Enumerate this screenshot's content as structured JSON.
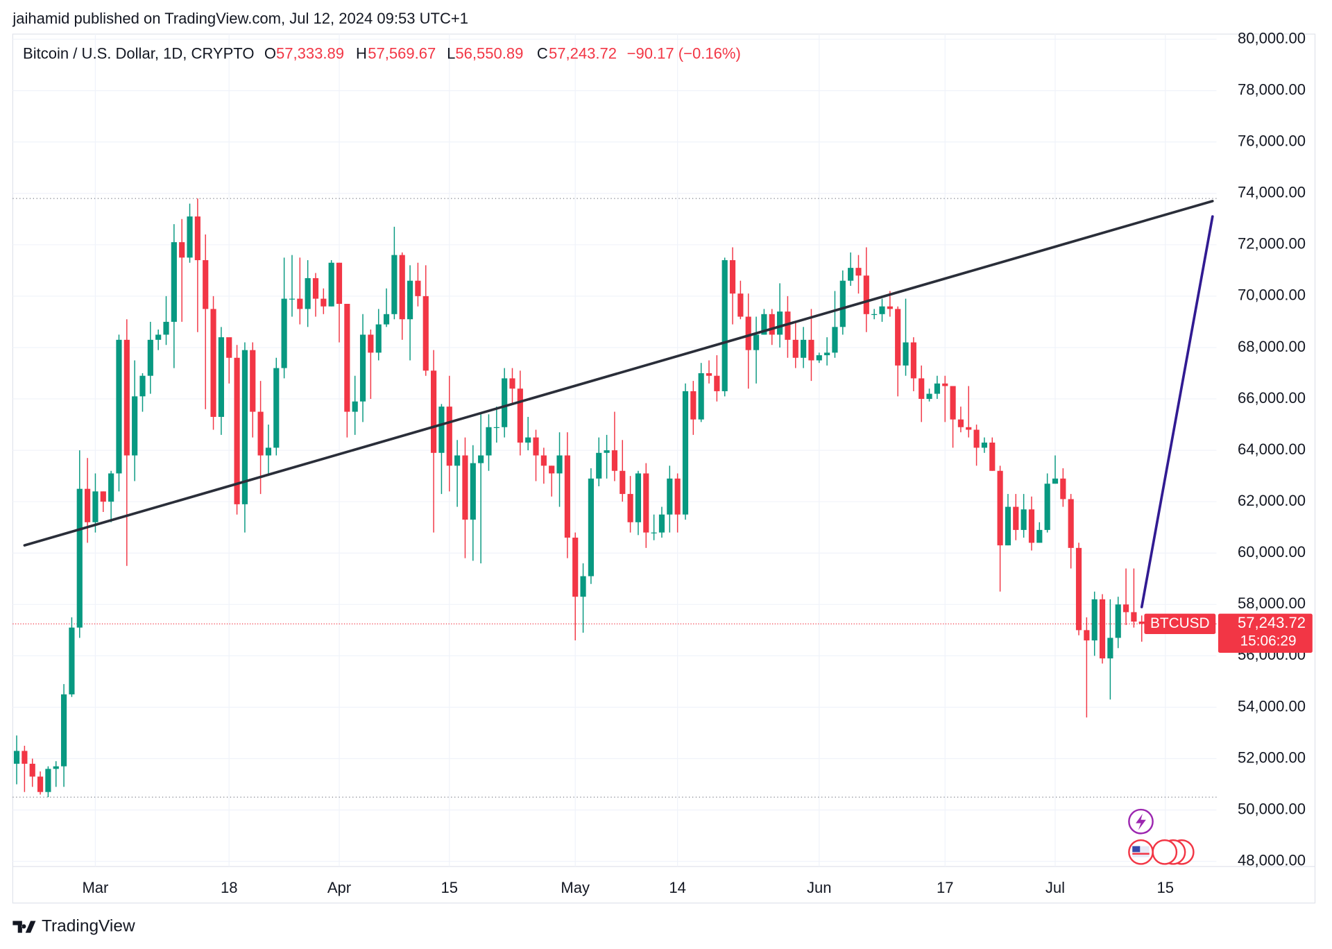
{
  "chart_data": {
    "type": "candlestick",
    "publisher": "jaihamid published on TradingView.com, Jul 12, 2024 09:53 UTC+1",
    "symbol": "Bitcoin / U.S. Dollar, 1D, CRYPTO",
    "legend_values": [
      {
        "label": "O",
        "text": "57,333.89"
      },
      {
        "label": "H",
        "text": "57,569.67"
      },
      {
        "label": "L",
        "text": "56,550.89"
      },
      {
        "label": "C",
        "text": "57,243.72"
      }
    ],
    "change": "−90.17 (−0.16%)",
    "symbol_tag": "BTCUSD",
    "last_price": 57243.72,
    "last_price_label": "57,243.72",
    "countdown": "15:06:29",
    "brand": "TradingView",
    "up_color": "#089981",
    "down_color": "#f23645",
    "x": [
      "02-20",
      "02-21",
      "02-22",
      "02-23",
      "02-24",
      "02-25",
      "02-26",
      "02-27",
      "02-28",
      "02-29",
      "03-01",
      "03-02",
      "03-03",
      "03-04",
      "03-05",
      "03-06",
      "03-07",
      "03-08",
      "03-09",
      "03-10",
      "03-11",
      "03-12",
      "03-13",
      "03-14",
      "03-15",
      "03-16",
      "03-17",
      "03-18",
      "03-19",
      "03-20",
      "03-21",
      "03-22",
      "03-23",
      "03-24",
      "03-25",
      "03-26",
      "03-27",
      "03-28",
      "03-29",
      "03-30",
      "03-31",
      "04-01",
      "04-02",
      "04-03",
      "04-04",
      "04-05",
      "04-06",
      "04-07",
      "04-08",
      "04-09",
      "04-10",
      "04-11",
      "04-12",
      "04-13",
      "04-14",
      "04-15",
      "04-16",
      "04-17",
      "04-18",
      "04-19",
      "04-20",
      "04-21",
      "04-22",
      "04-23",
      "04-24",
      "04-25",
      "04-26",
      "04-27",
      "04-28",
      "04-29",
      "04-30",
      "05-01",
      "05-02",
      "05-03",
      "05-04",
      "05-05",
      "05-06",
      "05-07",
      "05-08",
      "05-09",
      "05-10",
      "05-11",
      "05-12",
      "05-13",
      "05-14",
      "05-15",
      "05-16",
      "05-17",
      "05-18",
      "05-19",
      "05-20",
      "05-21",
      "05-22",
      "05-23",
      "05-24",
      "05-25",
      "05-26",
      "05-27",
      "05-28",
      "05-29",
      "05-30",
      "05-31",
      "06-01",
      "06-02",
      "06-03",
      "06-04",
      "06-05",
      "06-06",
      "06-07",
      "06-08",
      "06-09",
      "06-10",
      "06-11",
      "06-12",
      "06-13",
      "06-14",
      "06-15",
      "06-16",
      "06-17",
      "06-18",
      "06-19",
      "06-20",
      "06-21",
      "06-22",
      "06-23",
      "06-24",
      "06-25",
      "06-26",
      "06-27",
      "06-28",
      "06-29",
      "06-30",
      "07-01",
      "07-02",
      "07-03",
      "07-04",
      "07-05",
      "07-06",
      "07-07",
      "07-08",
      "07-09",
      "07-10",
      "07-11",
      "07-12"
    ],
    "open": [
      51800,
      52300,
      51800,
      51300,
      50700,
      51600,
      51700,
      54500,
      57100,
      62500,
      61200,
      62400,
      62000,
      63100,
      68300,
      63800,
      66100,
      66900,
      68300,
      68500,
      69000,
      72100,
      71500,
      73100,
      71400,
      69500,
      65300,
      68400,
      67600,
      61900,
      67900,
      65500,
      63800,
      64100,
      67200,
      69900,
      69900,
      69500,
      70700,
      69900,
      69600,
      71300,
      69700,
      65500,
      65900,
      68500,
      67800,
      68900,
      69300,
      71600,
      69100,
      70600,
      70000,
      67100,
      63900,
      65700,
      63400,
      63800,
      61300,
      63500,
      63800,
      64900,
      64900,
      66800,
      66400,
      64300,
      64500,
      63800,
      63400,
      63100,
      63800,
      60600,
      58300,
      59100,
      62900,
      63900,
      64000,
      63200,
      62300,
      61200,
      63100,
      60800,
      60800,
      61500,
      62900,
      61500,
      66300,
      65200,
      67000,
      66900,
      66300,
      71400,
      70100,
      69200,
      67900,
      68500,
      69300,
      68500,
      69400,
      68300,
      67600,
      68300,
      67500,
      67700,
      67800,
      68800,
      70600,
      71100,
      70800,
      69300,
      69300,
      69600,
      69500,
      67300,
      68200,
      66800,
      66000,
      66200,
      66600,
      66500,
      65200,
      64900,
      64800,
      64100,
      64300,
      63200,
      60300,
      61800,
      60900,
      61700,
      60400,
      60900,
      62700,
      62900,
      62100,
      60200,
      57000,
      56600,
      58200,
      55900,
      56700,
      58000,
      57700,
      57333.89
    ],
    "high": [
      52900,
      52500,
      52000,
      51500,
      51700,
      51900,
      54900,
      57500,
      64000,
      63700,
      63100,
      62400,
      63200,
      68500,
      69100,
      67500,
      67000,
      69000,
      68700,
      70000,
      72800,
      73000,
      73600,
      73800,
      72400,
      70000,
      68800,
      68100,
      68100,
      68200,
      68200,
      66700,
      65000,
      67600,
      71500,
      71600,
      71500,
      71400,
      70900,
      70300,
      71400,
      71300,
      69700,
      66900,
      69300,
      68700,
      69500,
      70300,
      72700,
      71700,
      71200,
      71300,
      71200,
      67900,
      65800,
      66900,
      64400,
      64500,
      64200,
      65400,
      65400,
      65700,
      67200,
      67200,
      67100,
      65300,
      64800,
      64100,
      63400,
      64700,
      64700,
      60800,
      59600,
      63300,
      64500,
      64600,
      65500,
      64400,
      63000,
      63200,
      63500,
      61500,
      61800,
      63400,
      63100,
      66600,
      66700,
      67400,
      67500,
      67700,
      71500,
      71900,
      70600,
      70100,
      69200,
      69500,
      69500,
      70500,
      70000,
      69000,
      68800,
      69500,
      67800,
      68400,
      70200,
      71000,
      71700,
      71600,
      71900,
      69500,
      69900,
      70200,
      69600,
      69900,
      68400,
      67300,
      66400,
      66900,
      66900,
      66500,
      65700,
      66500,
      65000,
      64500,
      64500,
      63400,
      62300,
      62300,
      62300,
      62200,
      61200,
      63100,
      63800,
      63300,
      62300,
      60400,
      57500,
      58500,
      58400,
      58200,
      58300,
      59400,
      59400,
      57569.67
    ],
    "low": [
      51000,
      50700,
      50900,
      50600,
      50500,
      50900,
      50900,
      54400,
      56700,
      60400,
      60800,
      61600,
      61200,
      62400,
      59500,
      62800,
      65500,
      66200,
      67900,
      68100,
      67200,
      69000,
      71300,
      68600,
      65600,
      64800,
      64600,
      66600,
      61500,
      60800,
      64500,
      62300,
      63000,
      63800,
      66800,
      69200,
      68900,
      68800,
      69200,
      69300,
      69600,
      68200,
      64500,
      64600,
      65100,
      66000,
      67500,
      68800,
      69100,
      68300,
      67500,
      69600,
      66900,
      60800,
      62300,
      62400,
      61800,
      59800,
      59700,
      59600,
      63200,
      64300,
      64500,
      65800,
      63800,
      64000,
      62800,
      62700,
      62200,
      61800,
      59800,
      56600,
      56900,
      58800,
      62600,
      62900,
      62800,
      62000,
      60800,
      60700,
      60200,
      60500,
      60600,
      60800,
      60800,
      61300,
      64600,
      65100,
      66600,
      65900,
      66100,
      68900,
      69100,
      66400,
      66600,
      68500,
      68100,
      68000,
      67600,
      67200,
      67200,
      66700,
      67400,
      67300,
      67600,
      68500,
      70400,
      70100,
      68600,
      69100,
      69000,
      69200,
      66100,
      66900,
      66300,
      65100,
      65900,
      66000,
      65100,
      64100,
      64700,
      64500,
      63400,
      63900,
      63200,
      58500,
      60300,
      60500,
      60600,
      60100,
      60400,
      60800,
      62700,
      61800,
      59400,
      56800,
      53600,
      56000,
      55700,
      54300,
      56300,
      57200,
      57100,
      56550.89
    ],
    "close": [
      52300,
      51800,
      51300,
      50700,
      51600,
      51700,
      54500,
      57100,
      62500,
      61200,
      62400,
      62000,
      63100,
      68300,
      63800,
      66100,
      66900,
      68300,
      68500,
      69000,
      72100,
      71500,
      73100,
      71400,
      69500,
      65300,
      68400,
      67600,
      61900,
      67900,
      65500,
      63800,
      64100,
      67200,
      69900,
      69900,
      69500,
      70700,
      69900,
      69600,
      71300,
      69700,
      65500,
      65900,
      68500,
      67800,
      68900,
      69300,
      71600,
      69100,
      70600,
      70000,
      67100,
      63900,
      65700,
      63400,
      63800,
      61300,
      63500,
      63800,
      64900,
      64900,
      66800,
      66400,
      64300,
      64500,
      63800,
      63400,
      63100,
      63800,
      60600,
      58300,
      59100,
      62900,
      63900,
      64000,
      63200,
      62300,
      61200,
      63100,
      60800,
      60800,
      61500,
      62900,
      61500,
      66300,
      65200,
      67000,
      66900,
      66300,
      71400,
      70100,
      69200,
      67900,
      68500,
      69300,
      68500,
      69400,
      68300,
      67600,
      68300,
      67500,
      67700,
      67800,
      68800,
      70600,
      71100,
      70800,
      69300,
      69300,
      69600,
      69500,
      67300,
      68200,
      66800,
      66000,
      66200,
      66600,
      66500,
      65200,
      64900,
      64800,
      64100,
      64300,
      63200,
      60300,
      61800,
      60900,
      61700,
      60400,
      60900,
      62700,
      62900,
      62100,
      60200,
      57000,
      56600,
      58200,
      55900,
      56700,
      58000,
      57700,
      57333.89,
      57243.72
    ],
    "xlim": [
      "02-20",
      "07-21"
    ],
    "xticks": [
      {
        "value": "03-01",
        "label": "Mar"
      },
      {
        "value": "03-18",
        "label": "18"
      },
      {
        "value": "04-01",
        "label": "Apr"
      },
      {
        "value": "04-15",
        "label": "15"
      },
      {
        "value": "05-01",
        "label": "May"
      },
      {
        "value": "05-14",
        "label": "14"
      },
      {
        "value": "06-01",
        "label": "Jun"
      },
      {
        "value": "06-17",
        "label": "17"
      },
      {
        "value": "07-01",
        "label": "Jul"
      },
      {
        "value": "07-15",
        "label": "15"
      }
    ],
    "ylim": [
      47800,
      80200
    ],
    "yticks": [
      {
        "value": 48000,
        "label": "48,000.00"
      },
      {
        "value": 50000,
        "label": "50,000.00"
      },
      {
        "value": 52000,
        "label": "52,000.00"
      },
      {
        "value": 54000,
        "label": "54,000.00"
      },
      {
        "value": 56000,
        "label": "56,000.00"
      },
      {
        "value": 58000,
        "label": "58,000.00"
      },
      {
        "value": 60000,
        "label": "60,000.00"
      },
      {
        "value": 62000,
        "label": "62,000.00"
      },
      {
        "value": 64000,
        "label": "64,000.00"
      },
      {
        "value": 66000,
        "label": "66,000.00"
      },
      {
        "value": 68000,
        "label": "68,000.00"
      },
      {
        "value": 70000,
        "label": "70,000.00"
      },
      {
        "value": 72000,
        "label": "72,000.00"
      },
      {
        "value": 74000,
        "label": "74,000.00"
      },
      {
        "value": 76000,
        "label": "76,000.00"
      },
      {
        "value": 78000,
        "label": "78,000.00"
      },
      {
        "value": 80000,
        "label": "80,000.00"
      }
    ],
    "grid": true,
    "levels": [
      {
        "value": 73800,
        "color": "#787b86"
      },
      {
        "value": 50500,
        "color": "#787b86"
      }
    ],
    "trendlines": [
      {
        "color": "#2a2e39",
        "points": [
          {
            "x": "02-21",
            "y": 60300
          },
          {
            "x": "07-21",
            "y": 73700
          }
        ]
      },
      {
        "color": "#311b92",
        "points": [
          {
            "x": "07-12",
            "y": 57900
          },
          {
            "x": "07-21",
            "y": 73100
          }
        ]
      }
    ]
  }
}
